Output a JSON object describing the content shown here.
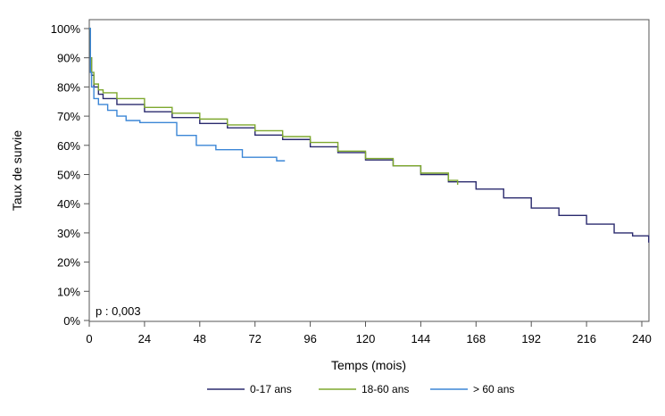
{
  "chart_data": {
    "type": "line",
    "step": true,
    "xlabel": "Temps (mois)",
    "ylabel": "Taux de survie",
    "xlim": [
      0,
      243
    ],
    "ylim": [
      0,
      100
    ],
    "xticks": [
      0,
      24,
      48,
      72,
      96,
      120,
      144,
      168,
      192,
      216,
      240
    ],
    "yticks": [
      0,
      10,
      20,
      30,
      40,
      50,
      60,
      70,
      80,
      90,
      100
    ],
    "ytick_labels": [
      "0%",
      "10%",
      "20%",
      "30%",
      "40%",
      "50%",
      "60%",
      "70%",
      "80%",
      "90%",
      "100%"
    ],
    "grid": false,
    "legend_position": "bottom",
    "annotation": "p : 0,003",
    "series": [
      {
        "name": "0-17 ans",
        "color": "#2a2a6e",
        "x": [
          0,
          0.5,
          1,
          2,
          4,
          6,
          12,
          24,
          36,
          48,
          60,
          72,
          84,
          96,
          108,
          120,
          132,
          144,
          156,
          168,
          180,
          192,
          204,
          216,
          228,
          236,
          243
        ],
        "y": [
          100,
          90,
          84,
          80,
          77.5,
          76,
          74,
          71.5,
          69.5,
          67.5,
          66,
          63.5,
          62,
          59.5,
          57.5,
          55,
          53,
          50,
          47.5,
          45,
          42,
          38.5,
          36,
          33,
          30,
          29,
          26.7
        ]
      },
      {
        "name": "18-60 ans",
        "color": "#7ea82e",
        "x": [
          0,
          0.5,
          1,
          2,
          4,
          6,
          12,
          24,
          36,
          48,
          60,
          72,
          84,
          96,
          108,
          120,
          132,
          144,
          156,
          160
        ],
        "y": [
          100,
          90,
          85,
          81,
          79,
          78,
          76,
          73,
          71,
          69,
          67,
          65,
          63,
          61,
          58,
          55.5,
          53,
          50.5,
          48,
          46.5
        ]
      },
      {
        "name": "> 60 ans",
        "color": "#3b86d6",
        "x": [
          0,
          0.5,
          1,
          2,
          4,
          8,
          12,
          16,
          22,
          38,
          46.5,
          55,
          66.5,
          81.4,
          85
        ],
        "y": [
          100,
          85,
          80,
          76,
          74,
          72,
          70,
          68.5,
          67.8,
          63.4,
          60,
          58.5,
          55.9,
          54.7,
          54.7
        ]
      }
    ]
  }
}
